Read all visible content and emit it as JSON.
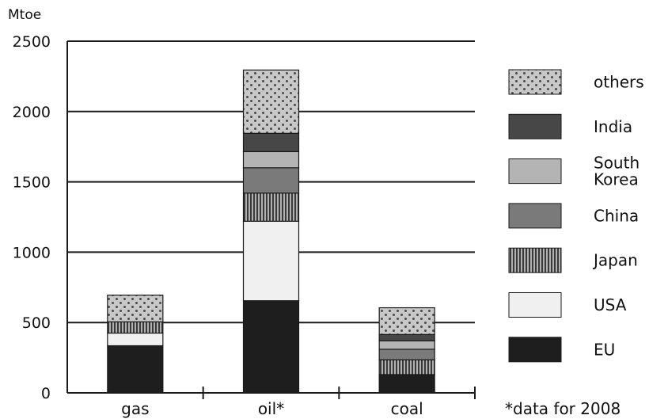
{
  "chart_data": {
    "type": "bar",
    "stacked": true,
    "ylabel": "Mtoe",
    "ylim": [
      0,
      2500
    ],
    "yticks": [
      "0",
      "500",
      "1000",
      "1500",
      "2000",
      "2500"
    ],
    "grid": true,
    "legend_position": "right",
    "categories": [
      "gas",
      "oil*",
      "coal"
    ],
    "series": [
      {
        "name": "EU",
        "values": [
          335,
          655,
          130
        ],
        "color": "#1e1e1e",
        "pattern": "solid"
      },
      {
        "name": "USA",
        "values": [
          90,
          565,
          0
        ],
        "color": "#f0f0f0",
        "pattern": "solid"
      },
      {
        "name": "Japan",
        "values": [
          80,
          200,
          105
        ],
        "color": "#8c8c8c",
        "pattern": "vertical-stripes"
      },
      {
        "name": "China",
        "values": [
          0,
          180,
          75
        ],
        "color": "#7a7a7a",
        "pattern": "solid"
      },
      {
        "name": "South Korea",
        "values": [
          0,
          115,
          60
        ],
        "color": "#b4b4b4",
        "pattern": "solid"
      },
      {
        "name": "India",
        "values": [
          0,
          130,
          45
        ],
        "color": "#474747",
        "pattern": "solid"
      },
      {
        "name": "others",
        "values": [
          190,
          450,
          190
        ],
        "color": "#c8c8c8",
        "pattern": "dots"
      }
    ],
    "legend_order": [
      "others",
      "India",
      "South Korea",
      "China",
      "Japan",
      "USA",
      "EU"
    ],
    "legend_lines": {
      "others": [
        "others"
      ],
      "India": [
        "India"
      ],
      "South Korea": [
        "South",
        "Korea"
      ],
      "China": [
        "China"
      ],
      "Japan": [
        "Japan"
      ],
      "USA": [
        "USA"
      ],
      "EU": [
        "EU"
      ]
    },
    "footnote": "*data for 2008"
  }
}
